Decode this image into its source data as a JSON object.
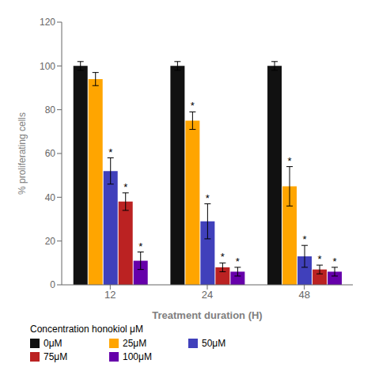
{
  "chart_data": {
    "type": "bar",
    "categories": [
      "12",
      "24",
      "48"
    ],
    "series": [
      {
        "name": "0μM",
        "color": "#111111",
        "values": [
          100,
          100,
          100
        ],
        "errors": [
          2,
          2,
          2
        ]
      },
      {
        "name": "25μM",
        "color": "#FFA500",
        "values": [
          94,
          75,
          45
        ],
        "errors": [
          3,
          4,
          9
        ]
      },
      {
        "name": "50μM",
        "color": "#4040BB",
        "values": [
          52,
          29,
          13
        ],
        "errors": [
          6,
          8,
          5
        ]
      },
      {
        "name": "75μM",
        "color": "#BB2222",
        "values": [
          38,
          8,
          7
        ],
        "errors": [
          4,
          2,
          2
        ]
      },
      {
        "name": "100μM",
        "color": "#6600AA",
        "values": [
          11,
          6,
          6
        ],
        "errors": [
          4,
          2,
          2
        ]
      }
    ],
    "annotations": [
      {
        "series": "50μM",
        "category": "12",
        "text": "*"
      },
      {
        "series": "75μM",
        "category": "12",
        "text": "*"
      },
      {
        "series": "100μM",
        "category": "12",
        "text": "*"
      },
      {
        "series": "25μM",
        "category": "24",
        "text": "*"
      },
      {
        "series": "50μM",
        "category": "24",
        "text": "*"
      },
      {
        "series": "75μM",
        "category": "24",
        "text": "*"
      },
      {
        "series": "100μM",
        "category": "24",
        "text": "*"
      },
      {
        "series": "25μM",
        "category": "48",
        "text": "*"
      },
      {
        "series": "50μM",
        "category": "48",
        "text": "*"
      },
      {
        "series": "75μM",
        "category": "48",
        "text": "*"
      },
      {
        "series": "100μM",
        "category": "48",
        "text": "*"
      }
    ],
    "xlabel": "Treatment duration (H)",
    "ylabel": "% proliferating cells",
    "ylim": [
      0,
      120
    ],
    "yticks": [
      0,
      20,
      40,
      60,
      80,
      100,
      120
    ],
    "legend_title": "Concentration honokiol μM",
    "legend": "bottom",
    "grid": false
  }
}
